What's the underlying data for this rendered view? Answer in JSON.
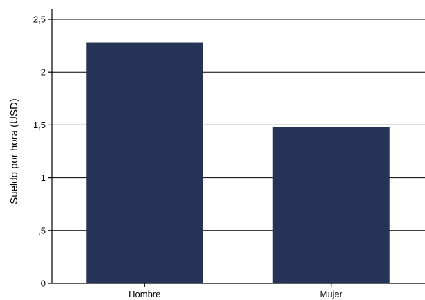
{
  "chart_data": {
    "type": "bar",
    "title": "",
    "xlabel": "",
    "ylabel": "Sueldo por hora (USD)",
    "categories": [
      "Hombre",
      "Mujer"
    ],
    "values": [
      2.28,
      1.48
    ],
    "ylim": [
      0,
      2.5
    ],
    "yticks": [
      0,
      0.5,
      1,
      1.5,
      2,
      2.5
    ],
    "ytick_labels": [
      "0",
      ",5",
      "1",
      "1,5",
      "2",
      "2,5"
    ],
    "grid": true,
    "legend": "none",
    "bar_color": "#253456"
  }
}
